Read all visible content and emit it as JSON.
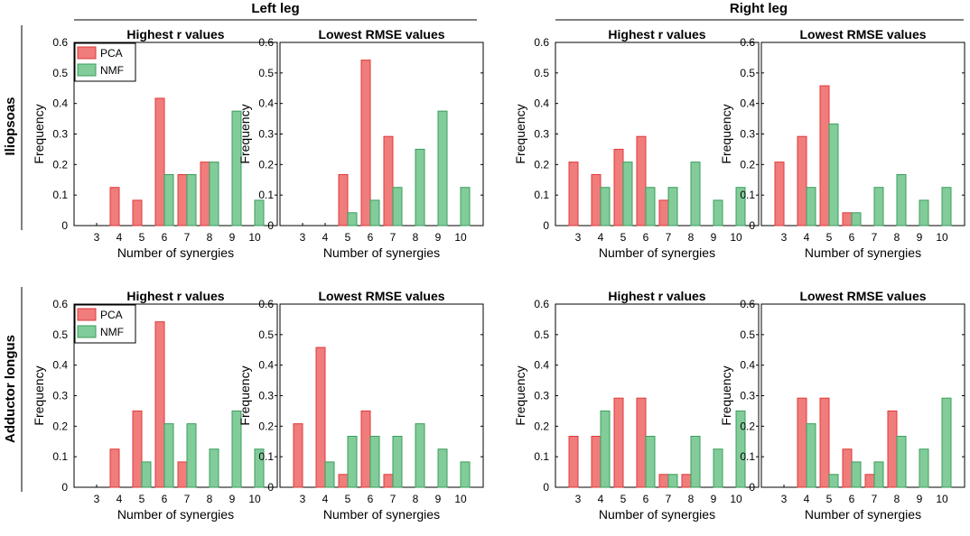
{
  "colors": {
    "pca_fill": "#f07c7c",
    "pca_stroke": "#e03a3a",
    "nmf_fill": "#82cc9a",
    "nmf_stroke": "#3a9e5c"
  },
  "headers": {
    "left_leg": "Left leg",
    "right_leg": "Right leg"
  },
  "row_labels": [
    "Iliopsoas",
    "Adductor longus"
  ],
  "legend": {
    "pca": "PCA",
    "nmf": "NMF"
  },
  "chart_data": [
    {
      "id": "iliopsoas-left-r",
      "type": "bar",
      "title": "Highest r values",
      "xlabel": "Number of synergies",
      "ylabel": "Frequency",
      "ylim": [
        0,
        0.6
      ],
      "yticks": [
        "0",
        "0.1",
        "0.2",
        "0.3",
        "0.4",
        "0.5",
        "0.6"
      ],
      "categories": [
        "3",
        "4",
        "5",
        "6",
        "7",
        "8",
        "9",
        "10"
      ],
      "legend": true,
      "series": [
        {
          "name": "PCA",
          "values": [
            0,
            0.125,
            0.083,
            0.417,
            0.167,
            0.208,
            0,
            0
          ]
        },
        {
          "name": "NMF",
          "values": [
            0,
            0,
            0,
            0.167,
            0.167,
            0.208,
            0.375,
            0.083
          ]
        }
      ]
    },
    {
      "id": "iliopsoas-left-rmse",
      "type": "bar",
      "title": "Lowest RMSE values",
      "xlabel": "Number of synergies",
      "ylabel": "Frequency",
      "ylim": [
        0,
        0.6
      ],
      "yticks": [
        "0",
        "0.1",
        "0.2",
        "0.3",
        "0.4",
        "0.5",
        "0.6"
      ],
      "categories": [
        "3",
        "4",
        "5",
        "6",
        "7",
        "8",
        "9",
        "10"
      ],
      "legend": false,
      "series": [
        {
          "name": "PCA",
          "values": [
            0,
            0,
            0.167,
            0.542,
            0.292,
            0,
            0,
            0
          ]
        },
        {
          "name": "NMF",
          "values": [
            0,
            0,
            0.042,
            0.083,
            0.125,
            0.25,
            0.375,
            0.125
          ]
        }
      ]
    },
    {
      "id": "iliopsoas-right-r",
      "type": "bar",
      "title": "Highest r values",
      "xlabel": "Number of synergies",
      "ylabel": "Frequency",
      "ylim": [
        0,
        0.6
      ],
      "yticks": [
        "0",
        "0.1",
        "0.2",
        "0.3",
        "0.4",
        "0.5",
        "0.6"
      ],
      "categories": [
        "3",
        "4",
        "5",
        "6",
        "7",
        "8",
        "9",
        "10"
      ],
      "legend": false,
      "series": [
        {
          "name": "PCA",
          "values": [
            0.208,
            0.167,
            0.25,
            0.292,
            0.083,
            0,
            0,
            0
          ]
        },
        {
          "name": "NMF",
          "values": [
            0,
            0.125,
            0.208,
            0.125,
            0.125,
            0.208,
            0.083,
            0.125
          ]
        }
      ]
    },
    {
      "id": "iliopsoas-right-rmse",
      "type": "bar",
      "title": "Lowest RMSE values",
      "xlabel": "Number of synergies",
      "ylabel": "Frequency",
      "ylim": [
        0,
        0.6
      ],
      "yticks": [
        "0",
        "0.1",
        "0.2",
        "0.3",
        "0.4",
        "0.5",
        "0.6"
      ],
      "categories": [
        "3",
        "4",
        "5",
        "6",
        "7",
        "8",
        "9",
        "10"
      ],
      "legend": false,
      "series": [
        {
          "name": "PCA",
          "values": [
            0.208,
            0.292,
            0.458,
            0.042,
            0,
            0,
            0,
            0
          ]
        },
        {
          "name": "NMF",
          "values": [
            0,
            0.125,
            0.333,
            0.042,
            0.125,
            0.167,
            0.083,
            0.125
          ]
        }
      ]
    },
    {
      "id": "adductor-left-r",
      "type": "bar",
      "title": "Highest r values",
      "xlabel": "Number of synergies",
      "ylabel": "Frequency",
      "ylim": [
        0,
        0.6
      ],
      "yticks": [
        "0",
        "0.1",
        "0.2",
        "0.3",
        "0.4",
        "0.5",
        "0.6"
      ],
      "categories": [
        "3",
        "4",
        "5",
        "6",
        "7",
        "8",
        "9",
        "10"
      ],
      "legend": true,
      "series": [
        {
          "name": "PCA",
          "values": [
            0,
            0.125,
            0.25,
            0.542,
            0.083,
            0,
            0,
            0
          ]
        },
        {
          "name": "NMF",
          "values": [
            0,
            0,
            0.083,
            0.208,
            0.208,
            0.125,
            0.25,
            0.125
          ]
        }
      ]
    },
    {
      "id": "adductor-left-rmse",
      "type": "bar",
      "title": "Lowest RMSE values",
      "xlabel": "Number of synergies",
      "ylabel": "Frequency",
      "ylim": [
        0,
        0.6
      ],
      "yticks": [
        "0",
        "0.1",
        "0.2",
        "0.3",
        "0.4",
        "0.5",
        "0.6"
      ],
      "categories": [
        "3",
        "4",
        "5",
        "6",
        "7",
        "8",
        "9",
        "10"
      ],
      "legend": false,
      "series": [
        {
          "name": "PCA",
          "values": [
            0.208,
            0.458,
            0.042,
            0.25,
            0.042,
            0,
            0,
            0
          ]
        },
        {
          "name": "NMF",
          "values": [
            0,
            0.083,
            0.167,
            0.167,
            0.167,
            0.208,
            0.125,
            0.083
          ]
        }
      ]
    },
    {
      "id": "adductor-right-r",
      "type": "bar",
      "title": "Highest r values",
      "xlabel": "Number of synergies",
      "ylabel": "Frequency",
      "ylim": [
        0,
        0.6
      ],
      "yticks": [
        "0",
        "0.1",
        "0.2",
        "0.3",
        "0.4",
        "0.5",
        "0.6"
      ],
      "categories": [
        "3",
        "4",
        "5",
        "6",
        "7",
        "8",
        "9",
        "10"
      ],
      "legend": false,
      "series": [
        {
          "name": "PCA",
          "values": [
            0.167,
            0.167,
            0.292,
            0.292,
            0.042,
            0.042,
            0,
            0
          ]
        },
        {
          "name": "NMF",
          "values": [
            0,
            0.25,
            0,
            0.167,
            0.042,
            0.167,
            0.125,
            0.25
          ]
        }
      ]
    },
    {
      "id": "adductor-right-rmse",
      "type": "bar",
      "title": "Lowest RMSE values",
      "xlabel": "Number of synergies",
      "ylabel": "Frequency",
      "ylim": [
        0,
        0.6
      ],
      "yticks": [
        "0",
        "0.1",
        "0.2",
        "0.3",
        "0.4",
        "0.5",
        "0.6"
      ],
      "categories": [
        "3",
        "4",
        "5",
        "6",
        "7",
        "8",
        "9",
        "10"
      ],
      "legend": false,
      "series": [
        {
          "name": "PCA",
          "values": [
            0,
            0.292,
            0.292,
            0.125,
            0.042,
            0.25,
            0,
            0
          ]
        },
        {
          "name": "NMF",
          "values": [
            0,
            0.208,
            0.042,
            0.083,
            0.083,
            0.167,
            0.125,
            0.292
          ]
        }
      ]
    }
  ]
}
